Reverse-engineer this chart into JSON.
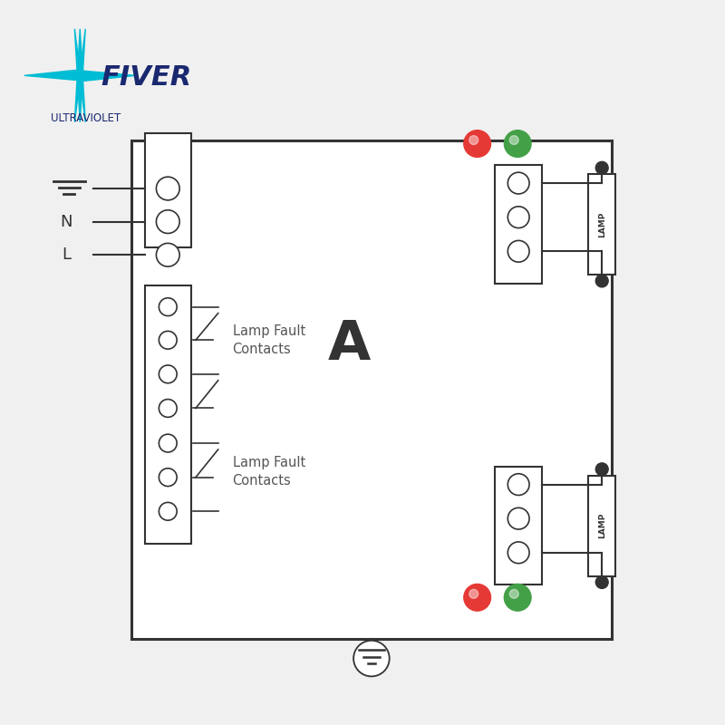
{
  "bg_color": "#f0f0f0",
  "box_color": "#ffffff",
  "box_border": "#1a1a1a",
  "line_color": "#333333",
  "fiver_cyan": "#00bcd4",
  "fiver_navy": "#1a2870",
  "red_led": "#e53935",
  "green_led": "#43a047",
  "title": "A",
  "lamp_fault_1": "Lamp Fault\nContacts",
  "lamp_fault_2": "Lamp Fault\nContacts",
  "labels_left": [
    "⊥",
    "N",
    "L"
  ]
}
